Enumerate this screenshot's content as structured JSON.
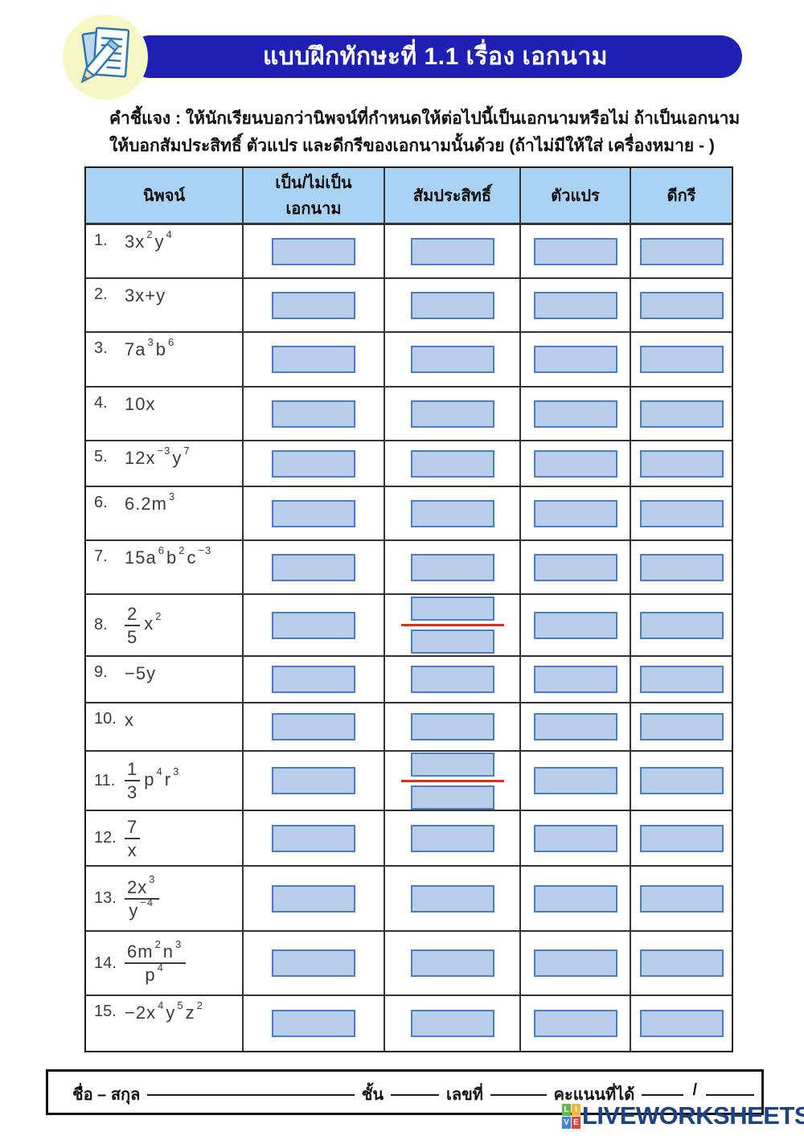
{
  "header": {
    "title": "แบบฝึกทักษะที่ 1.1 เรื่อง เอกนาม"
  },
  "instructions": {
    "line1": "คำชี้แจง : ให้นักเรียนบอกว่านิพจน์ที่กำหนดให้ต่อไปนี้เป็นเอกนามหรือไม่  ถ้าเป็นเอกนาม",
    "line2": "ให้บอกสัมประสิทธิ์ ตัวแปร และดีกรีของเอกนามนั้นด้วย (ถ้าไม่มีให้ใส่ เครื่องหมาย - )"
  },
  "table": {
    "headers": {
      "expression": "นิพจน์",
      "is_monomial_line1": "เป็น/ไม่เป็น",
      "is_monomial_line2": "เอกนาม",
      "coefficient": "สัมประสิทธิ์",
      "variable": "ตัวแปร",
      "degree": "ดีกรี"
    },
    "rows": [
      {
        "num": "1.",
        "kind": "plain",
        "expr": "3x^2^y^4^",
        "coef_split": false
      },
      {
        "num": "2.",
        "kind": "plain",
        "expr": "3x+y",
        "coef_split": false
      },
      {
        "num": "3.",
        "kind": "plain",
        "expr": "7a^3^b^6^",
        "coef_split": false
      },
      {
        "num": "4.",
        "kind": "plain",
        "expr": "10x",
        "coef_split": false
      },
      {
        "num": "5.",
        "kind": "plain",
        "expr": "12x^−3^y^7^",
        "coef_split": false
      },
      {
        "num": "6.",
        "kind": "plain",
        "expr": "6.2m^3^",
        "coef_split": false
      },
      {
        "num": "7.",
        "kind": "plain",
        "expr": "15a^6^b^2^c^−3^",
        "coef_split": false
      },
      {
        "num": "8.",
        "kind": "frac",
        "top": "2",
        "bottom": "5",
        "right": "x^2^",
        "coef_split": true
      },
      {
        "num": "9.",
        "kind": "plain",
        "expr": "−5y",
        "coef_split": false
      },
      {
        "num": "10.",
        "kind": "plain",
        "expr": "x",
        "coef_split": false
      },
      {
        "num": "11.",
        "kind": "frac",
        "top": "1",
        "bottom": "3",
        "right": "p^4^r^3^",
        "coef_split": true
      },
      {
        "num": "12.",
        "kind": "frac",
        "top": "7",
        "bottom": "x",
        "right": "",
        "coef_split": false
      },
      {
        "num": "13.",
        "kind": "frac",
        "top": "2x^3^",
        "bottom": "y^−4^",
        "right": "",
        "coef_split": false
      },
      {
        "num": "14.",
        "kind": "frac",
        "top": "6m^2^n^3^",
        "bottom": "p^4^",
        "right": "",
        "coef_split": false
      },
      {
        "num": "15.",
        "kind": "plain",
        "expr": "−2x^4^y^5^z^2^",
        "coef_split": false
      }
    ]
  },
  "footer": {
    "name_label": "ชื่อ – สกุล",
    "class_label": "ชั้น",
    "number_label": "เลขที่",
    "score_label": "คะแนนที่ได้",
    "slash": "/"
  },
  "logo": {
    "text": "LIVEWORKSHEETS",
    "grid": [
      {
        "letter": "L",
        "color": "#62b94e"
      },
      {
        "letter": "I",
        "color": "#f4b63f"
      },
      {
        "letter": "V",
        "color": "#4186d6"
      },
      {
        "letter": "E",
        "color": "#e5403a"
      }
    ]
  },
  "colors": {
    "banner": "#1f1fb4",
    "table_header_bg": "#a8d3f5",
    "answer_box_fill": "#b9cce9",
    "answer_box_border": "#4a7fbe",
    "fraction_line": "#dd2e1f",
    "logo_text": "#1a4582"
  }
}
